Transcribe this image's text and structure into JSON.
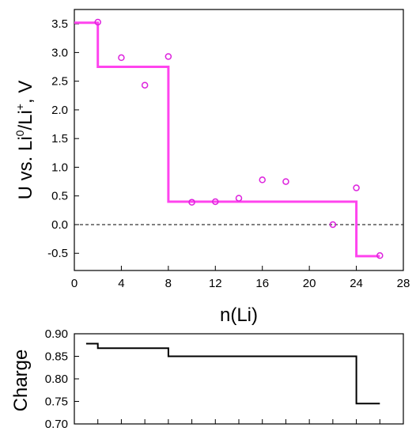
{
  "chart_data": [
    {
      "type": "line",
      "xlabel": "n(Li)",
      "ylabel": {
        "main": "U vs. Li",
        "sup1": "0",
        "mid": "/Li",
        "sup2": "+",
        "end": ", V"
      },
      "xlim": [
        0,
        28
      ],
      "ylim": [
        -0.8,
        3.75
      ],
      "xticks": [
        0,
        4,
        8,
        12,
        16,
        20,
        24,
        28
      ],
      "yticks": [
        -0.5,
        0.0,
        0.5,
        1.0,
        1.5,
        2.0,
        2.5,
        3.0,
        3.5
      ],
      "ytick_labels": [
        "-0.5",
        "0.0",
        "0.5",
        "1.0",
        "1.5",
        "2.0",
        "2.5",
        "3.0",
        "3.5"
      ],
      "grid": false,
      "series": [
        {
          "kind": "step",
          "color": "#ff44ee",
          "points": [
            [
              0,
              3.52
            ],
            [
              2,
              3.52
            ],
            [
              2,
              2.75
            ],
            [
              8,
              2.75
            ],
            [
              8,
              0.4
            ],
            [
              24,
              0.4
            ],
            [
              24,
              -0.55
            ],
            [
              26,
              -0.55
            ]
          ]
        },
        {
          "kind": "scatter",
          "color": "#dd22dd",
          "points": [
            [
              2,
              3.53
            ],
            [
              4,
              2.91
            ],
            [
              6,
              2.43
            ],
            [
              8,
              2.93
            ],
            [
              10,
              0.39
            ],
            [
              12,
              0.4
            ],
            [
              14,
              0.46
            ],
            [
              16,
              0.78
            ],
            [
              18,
              0.75
            ],
            [
              22,
              0.0
            ],
            [
              24,
              0.64
            ],
            [
              26,
              -0.54
            ]
          ]
        }
      ],
      "reference_line": {
        "y": 0.0,
        "style": "dashed",
        "color": "#000000"
      }
    },
    {
      "type": "line",
      "ylabel": "Charge",
      "xlim": [
        0,
        28
      ],
      "ylim": [
        0.7,
        0.9
      ],
      "xticks": [
        0,
        2,
        4,
        6,
        8,
        10,
        12,
        14,
        16,
        18,
        20,
        22,
        24,
        26,
        28
      ],
      "yticks": [
        0.7,
        0.75,
        0.8,
        0.85,
        0.9
      ],
      "ytick_labels": [
        "0.70",
        "0.75",
        "0.80",
        "0.85",
        "0.90"
      ],
      "grid": false,
      "series": [
        {
          "kind": "step",
          "color": "#000000",
          "points": [
            [
              1,
              0.878
            ],
            [
              2,
              0.878
            ],
            [
              2,
              0.868
            ],
            [
              8,
              0.868
            ],
            [
              8,
              0.85
            ],
            [
              24,
              0.85
            ],
            [
              24,
              0.745
            ],
            [
              26,
              0.745
            ]
          ]
        }
      ]
    }
  ]
}
